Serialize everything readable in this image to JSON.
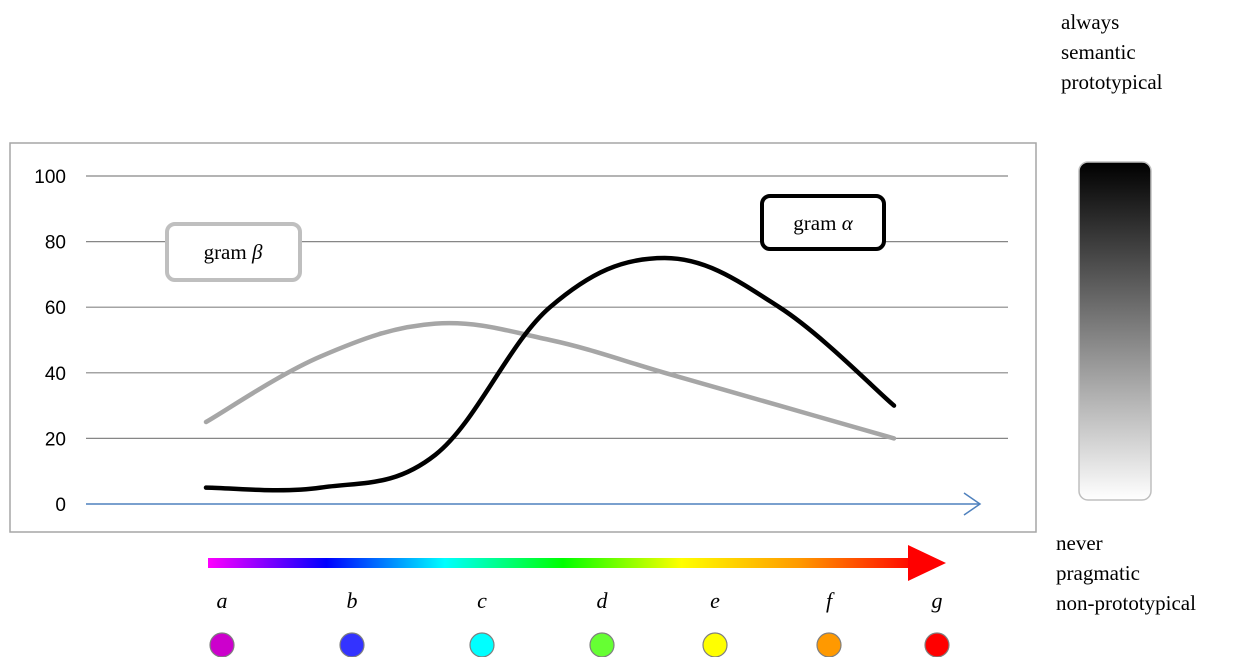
{
  "chart_data": {
    "type": "line",
    "title": "",
    "xlabel": "",
    "ylabel": "",
    "ylim": [
      0,
      100
    ],
    "yticks": [
      0,
      20,
      40,
      60,
      80,
      100
    ],
    "categories": [
      "a",
      "b",
      "c",
      "d",
      "e",
      "f",
      "g"
    ],
    "series": [
      {
        "name": "gram α",
        "label_prefix": "gram ",
        "label_symbol": "α",
        "color": "#000000",
        "values": [
          5,
          5,
          15,
          60,
          75,
          60,
          30
        ]
      },
      {
        "name": "gram β",
        "label_prefix": "gram ",
        "label_symbol": "β",
        "color": "#a6a6a6",
        "values": [
          25,
          45,
          55,
          50,
          40,
          30,
          20
        ]
      }
    ],
    "category_colors": [
      "#cc00cc",
      "#3333ff",
      "#00ffff",
      "#66ff33",
      "#ffff00",
      "#ff9900",
      "#ff0000"
    ],
    "grid": true,
    "spectrum_colors": [
      "#ff00ff",
      "#0000ff",
      "#00ffff",
      "#00ff00",
      "#ffff00",
      "#ff9900",
      "#ff0000"
    ]
  },
  "scale": {
    "top_labels": [
      "always",
      "semantic",
      "prototypical"
    ],
    "bottom_labels": [
      "never",
      "pragmatic",
      "non-prototypical"
    ],
    "gradient_top": "#000000",
    "gradient_bottom": "#ffffff"
  }
}
